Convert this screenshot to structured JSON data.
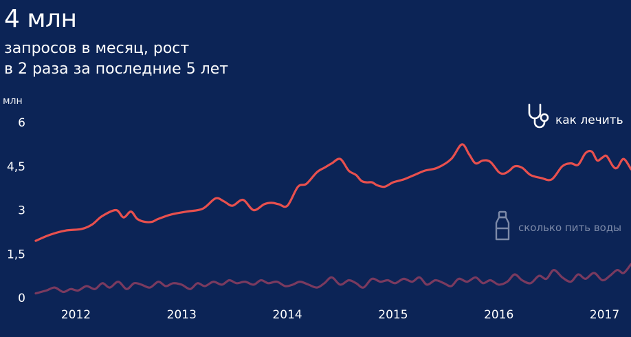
{
  "header": {
    "headline": "4 млн",
    "subtitle_line1": "запросов в месяц, рост",
    "subtitle_line2": "в 2 раза за последние 5 лет"
  },
  "colors": {
    "background": "#0c2456",
    "series_main": "#e8504e",
    "series_secondary": "#7a3a5f",
    "secondary_label": "#7d8aa8"
  },
  "icons": {
    "legend_1": "stethoscope-icon",
    "legend_2": "water-bottle-icon"
  },
  "chart_data": {
    "type": "line",
    "unit_label": "млн",
    "ylim": [
      0,
      6
    ],
    "y_ticks": [
      "0",
      "1,5",
      "3",
      "4,5",
      "6"
    ],
    "y_tick_values": [
      0,
      1.5,
      3,
      4.5,
      6
    ],
    "x_ticks": [
      "2012",
      "2013",
      "2014",
      "2015",
      "2016",
      "2017"
    ],
    "x_tick_values": [
      2012.0,
      2013.0,
      2014.0,
      2015.0,
      2016.0,
      2017.0
    ],
    "xlim": [
      2011.62,
      2017.25
    ],
    "grid": false,
    "legend": "right",
    "series": [
      {
        "name": "как лечить",
        "x": [
          2011.62,
          2011.75,
          2011.9,
          2012.05,
          2012.15,
          2012.25,
          2012.38,
          2012.45,
          2012.52,
          2012.58,
          2012.65,
          2012.72,
          2012.78,
          2012.9,
          2013.05,
          2013.2,
          2013.32,
          2013.4,
          2013.48,
          2013.58,
          2013.68,
          2013.78,
          2013.85,
          2013.92,
          2014.0,
          2014.1,
          2014.18,
          2014.28,
          2014.35,
          2014.42,
          2014.5,
          2014.58,
          2014.65,
          2014.7,
          2014.75,
          2014.8,
          2014.85,
          2014.92,
          2015.0,
          2015.1,
          2015.2,
          2015.3,
          2015.42,
          2015.55,
          2015.65,
          2015.72,
          2015.78,
          2015.85,
          2015.92,
          2016.0,
          2016.05,
          2016.1,
          2016.15,
          2016.22,
          2016.3,
          2016.4,
          2016.5,
          2016.6,
          2016.68,
          2016.75,
          2016.82,
          2016.88,
          2016.93,
          2016.98,
          2017.02,
          2017.08,
          2017.12,
          2017.18,
          2017.25
        ],
        "values": [
          1.95,
          2.15,
          2.3,
          2.35,
          2.5,
          2.8,
          3.0,
          2.75,
          2.95,
          2.7,
          2.6,
          2.6,
          2.7,
          2.85,
          2.95,
          3.05,
          3.4,
          3.3,
          3.15,
          3.35,
          3.0,
          3.2,
          3.25,
          3.2,
          3.15,
          3.8,
          3.9,
          4.3,
          4.45,
          4.6,
          4.75,
          4.35,
          4.2,
          4.0,
          3.95,
          3.95,
          3.85,
          3.8,
          3.95,
          4.05,
          4.2,
          4.35,
          4.45,
          4.75,
          5.25,
          4.9,
          4.6,
          4.7,
          4.65,
          4.3,
          4.25,
          4.35,
          4.5,
          4.45,
          4.2,
          4.1,
          4.05,
          4.5,
          4.6,
          4.55,
          4.95,
          5.0,
          4.7,
          4.8,
          4.85,
          4.5,
          4.45,
          4.75,
          4.4
        ]
      },
      {
        "name": "сколько пить воды",
        "x": [
          2011.62,
          2011.72,
          2011.8,
          2011.88,
          2011.95,
          2012.02,
          2012.1,
          2012.18,
          2012.25,
          2012.32,
          2012.4,
          2012.48,
          2012.55,
          2012.62,
          2012.7,
          2012.78,
          2012.85,
          2012.92,
          2013.0,
          2013.08,
          2013.15,
          2013.22,
          2013.3,
          2013.38,
          2013.45,
          2013.52,
          2013.6,
          2013.68,
          2013.75,
          2013.82,
          2013.9,
          2013.98,
          2014.05,
          2014.12,
          2014.2,
          2014.28,
          2014.35,
          2014.42,
          2014.5,
          2014.58,
          2014.65,
          2014.72,
          2014.8,
          2014.88,
          2014.95,
          2015.02,
          2015.1,
          2015.18,
          2015.25,
          2015.32,
          2015.4,
          2015.48,
          2015.55,
          2015.62,
          2015.7,
          2015.78,
          2015.85,
          2015.92,
          2016.0,
          2016.08,
          2016.15,
          2016.22,
          2016.3,
          2016.38,
          2016.45,
          2016.52,
          2016.6,
          2016.68,
          2016.75,
          2016.82,
          2016.9,
          2016.98,
          2017.05,
          2017.12,
          2017.18,
          2017.25
        ],
        "values": [
          0.15,
          0.25,
          0.35,
          0.2,
          0.3,
          0.25,
          0.4,
          0.3,
          0.5,
          0.35,
          0.55,
          0.3,
          0.5,
          0.45,
          0.35,
          0.55,
          0.4,
          0.5,
          0.45,
          0.3,
          0.5,
          0.4,
          0.55,
          0.45,
          0.6,
          0.5,
          0.55,
          0.45,
          0.6,
          0.5,
          0.55,
          0.4,
          0.45,
          0.55,
          0.45,
          0.35,
          0.5,
          0.7,
          0.45,
          0.6,
          0.5,
          0.35,
          0.65,
          0.55,
          0.6,
          0.5,
          0.65,
          0.55,
          0.7,
          0.45,
          0.6,
          0.5,
          0.4,
          0.65,
          0.55,
          0.7,
          0.5,
          0.6,
          0.45,
          0.55,
          0.8,
          0.6,
          0.5,
          0.75,
          0.65,
          0.95,
          0.7,
          0.55,
          0.8,
          0.65,
          0.85,
          0.6,
          0.75,
          0.95,
          0.85,
          1.15
        ]
      }
    ]
  }
}
